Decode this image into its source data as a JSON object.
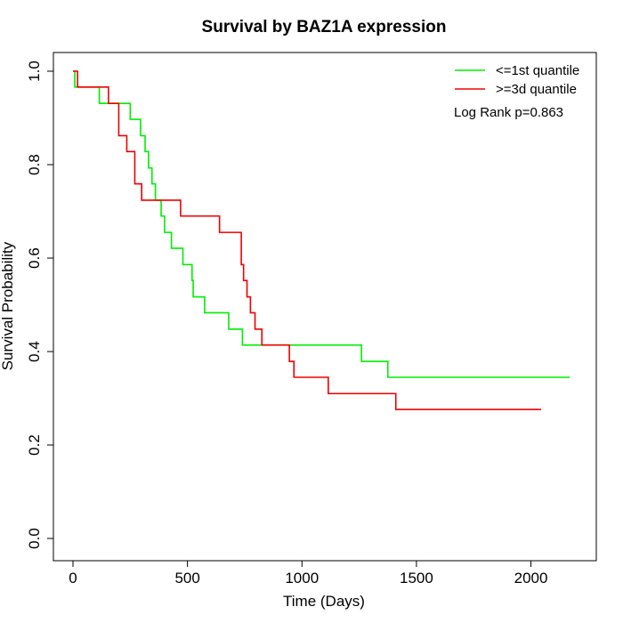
{
  "chart_data": {
    "type": "line",
    "subtype": "kaplan-meier step",
    "title": "Survival by BAZ1A expression",
    "xlabel": "Time (Days)",
    "ylabel": "Survival Probability",
    "xlim": [
      0,
      2200
    ],
    "ylim": [
      0,
      1.0
    ],
    "xticks": [
      0,
      500,
      1000,
      1500,
      2000
    ],
    "yticks": [
      0.0,
      0.2,
      0.4,
      0.6,
      0.8,
      1.0
    ],
    "xtick_labels": [
      "0",
      "500",
      "1000",
      "1500",
      "2000"
    ],
    "ytick_labels": [
      "0.0",
      "0.2",
      "0.4",
      "0.6",
      "0.8",
      "1.0"
    ],
    "grid": false,
    "legend_position": "top-right",
    "annotation": "Log Rank p=0.863",
    "series": [
      {
        "name": "<=1st quantile",
        "color": "#00ee00",
        "steps": [
          [
            0,
            1.0
          ],
          [
            8,
            0.966
          ],
          [
            115,
            0.931
          ],
          [
            150,
            0.931
          ],
          [
            250,
            0.897
          ],
          [
            295,
            0.862
          ],
          [
            315,
            0.828
          ],
          [
            330,
            0.793
          ],
          [
            345,
            0.759
          ],
          [
            360,
            0.724
          ],
          [
            385,
            0.69
          ],
          [
            400,
            0.655
          ],
          [
            430,
            0.621
          ],
          [
            480,
            0.586
          ],
          [
            520,
            0.552
          ],
          [
            525,
            0.517
          ],
          [
            575,
            0.483
          ],
          [
            680,
            0.448
          ],
          [
            740,
            0.414
          ],
          [
            1260,
            0.379
          ],
          [
            1375,
            0.345
          ],
          [
            2170,
            0.345
          ]
        ]
      },
      {
        "name": ">=3d quantile",
        "color": "#ee0000",
        "steps": [
          [
            0,
            1.0
          ],
          [
            20,
            0.966
          ],
          [
            155,
            0.931
          ],
          [
            200,
            0.862
          ],
          [
            235,
            0.828
          ],
          [
            270,
            0.759
          ],
          [
            300,
            0.724
          ],
          [
            470,
            0.69
          ],
          [
            640,
            0.655
          ],
          [
            735,
            0.586
          ],
          [
            745,
            0.552
          ],
          [
            760,
            0.517
          ],
          [
            775,
            0.483
          ],
          [
            795,
            0.448
          ],
          [
            825,
            0.414
          ],
          [
            945,
            0.379
          ],
          [
            965,
            0.345
          ],
          [
            1115,
            0.31
          ],
          [
            1410,
            0.276
          ],
          [
            2045,
            0.276
          ]
        ]
      }
    ]
  }
}
